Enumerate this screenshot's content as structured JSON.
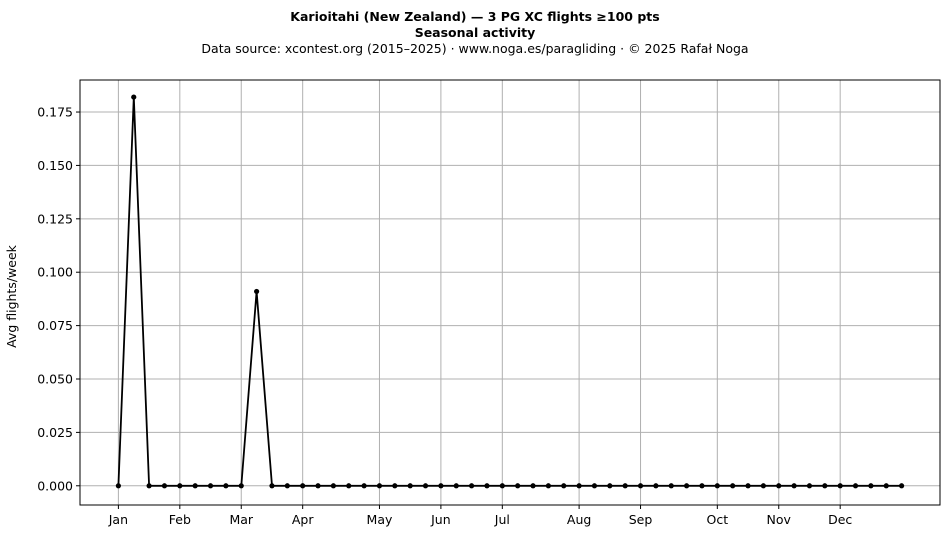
{
  "header": {
    "title": "Karioitahi (New Zealand)  —  3 PG XC flights ≥100 pts",
    "subtitle": "Seasonal activity",
    "source": "Data source: xcontest.org (2015–2025)  ·  www.noga.es/paragliding  ·  © 2025 Rafał Noga"
  },
  "chart_data": {
    "type": "line",
    "ylabel": "Avg flights/week",
    "ylim": [
      -0.009,
      0.19
    ],
    "yticks": [
      "0.000",
      "0.025",
      "0.050",
      "0.075",
      "0.100",
      "0.125",
      "0.150",
      "0.175"
    ],
    "ytick_values": [
      0,
      0.025,
      0.05,
      0.075,
      0.1,
      0.125,
      0.15,
      0.175
    ],
    "xlim": [
      -2.5,
      53.5
    ],
    "month_labels": [
      "Jan",
      "Feb",
      "Mar",
      "Apr",
      "May",
      "Jun",
      "Jul",
      "Aug",
      "Sep",
      "Oct",
      "Nov",
      "Dec"
    ],
    "month_weeks": [
      0,
      4,
      8,
      12,
      17,
      21,
      25,
      30,
      34,
      39,
      43,
      47
    ],
    "grid": true,
    "line_color": "#000000",
    "grid_color": "#b0b0b0",
    "series": [
      {
        "x": [
          0,
          1,
          2,
          3,
          4,
          5,
          6,
          7,
          8,
          9,
          10,
          11,
          12,
          13,
          14,
          15,
          16,
          17,
          18,
          19,
          20,
          21,
          22,
          23,
          24,
          25,
          26,
          27,
          28,
          29,
          30,
          31,
          32,
          33,
          34,
          35,
          36,
          37,
          38,
          39,
          40,
          41,
          42,
          43,
          44,
          45,
          46,
          47,
          48,
          49,
          50,
          51
        ],
        "values": [
          0,
          0.182,
          0,
          0,
          0,
          0,
          0,
          0,
          0,
          0.091,
          0,
          0,
          0,
          0,
          0,
          0,
          0,
          0,
          0,
          0,
          0,
          0,
          0,
          0,
          0,
          0,
          0,
          0,
          0,
          0,
          0,
          0,
          0,
          0,
          0,
          0,
          0,
          0,
          0,
          0,
          0,
          0,
          0,
          0,
          0,
          0,
          0,
          0,
          0,
          0,
          0,
          0
        ]
      }
    ]
  }
}
